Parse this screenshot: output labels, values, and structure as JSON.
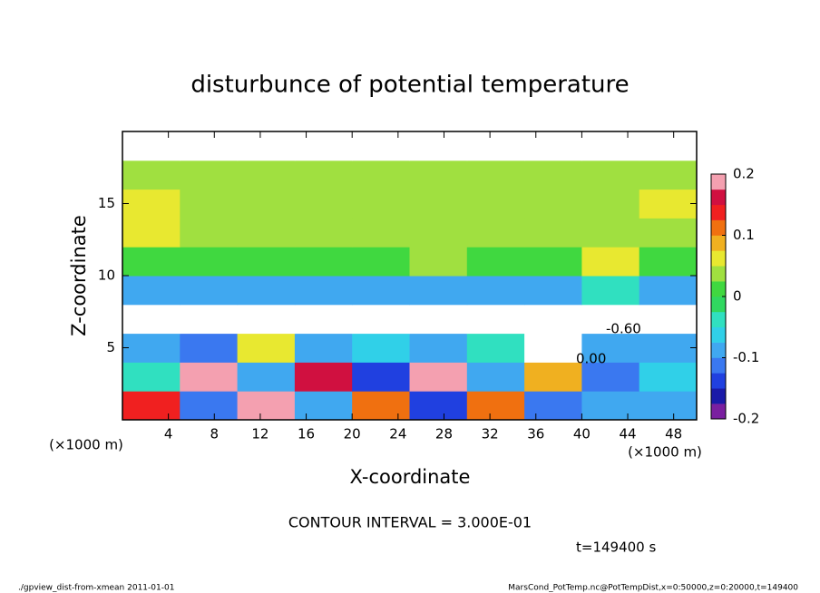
{
  "chart_data": {
    "type": "heatmap",
    "title": "disturbunce of potential temperature",
    "xlabel": "X-coordinate",
    "ylabel": "Z-coordinate",
    "xunit": "(×1000 m)",
    "yunit": "(×1000 m)",
    "xlim": [
      0,
      50
    ],
    "ylim": [
      0,
      20
    ],
    "xticks": [
      4,
      8,
      12,
      16,
      20,
      24,
      28,
      32,
      36,
      40,
      44,
      48
    ],
    "yticks": [
      5,
      10,
      15
    ],
    "x": [
      2.5,
      7.5,
      12.5,
      17.5,
      22.5,
      27.5,
      32.5,
      37.5,
      42.5,
      47.5
    ],
    "z": [
      1,
      3,
      5,
      7,
      9,
      11,
      13,
      15,
      17,
      19
    ],
    "values": [
      [
        0.15,
        -0.12,
        0.18,
        -0.1,
        0.12,
        -0.15,
        0.1,
        -0.12,
        -0.08,
        -0.1
      ],
      [
        -0.05,
        0.2,
        -0.1,
        0.16,
        -0.14,
        0.18,
        -0.1,
        0.08,
        -0.12,
        -0.06
      ],
      [
        -0.08,
        -0.12,
        0.05,
        -0.1,
        -0.06,
        -0.1,
        -0.05,
        -0.25,
        -0.08,
        -0.1
      ],
      [
        -0.25,
        -0.25,
        -0.25,
        -0.25,
        -0.25,
        -0.25,
        -0.25,
        -0.25,
        -0.25,
        -0.25
      ],
      [
        -0.09,
        -0.1,
        -0.09,
        -0.1,
        -0.09,
        -0.08,
        -0.09,
        -0.1,
        -0.03,
        -0.09
      ],
      [
        0.02,
        0.02,
        0.02,
        0.02,
        0.02,
        0.03,
        0.02,
        0.02,
        0.05,
        0.02
      ],
      [
        0.05,
        0.03,
        0.03,
        0.03,
        0.03,
        0.03,
        0.03,
        0.03,
        0.04,
        0.03
      ],
      [
        0.05,
        0.03,
        0.03,
        0.03,
        0.03,
        0.03,
        0.03,
        0.03,
        0.03,
        0.05
      ],
      [
        0.03,
        0.03,
        0.03,
        0.03,
        0.03,
        0.03,
        0.03,
        0.03,
        0.03,
        0.03
      ],
      [
        0.25,
        0.25,
        0.25,
        0.25,
        0.25,
        0.25,
        0.25,
        0.25,
        0.25,
        0.25
      ]
    ],
    "colorbar_lim": [
      -0.2,
      0.2
    ],
    "colorbar_ticks": [
      -0.2,
      -0.1,
      0,
      0.1,
      0.2
    ],
    "colors": [
      "#7a1fa0",
      "#1a1aa8",
      "#2040e0",
      "#3a78f0",
      "#40a8f0",
      "#30d0e8",
      "#30e0c0",
      "#30d860",
      "#40d840",
      "#a0e040",
      "#e8e830",
      "#f0b020",
      "#f07010",
      "#f02020",
      "#d01040",
      "#f4a0b0"
    ],
    "out_of_range_color": "#ffffff",
    "contour_labels": [
      "-0.60",
      "0.00"
    ],
    "contour_interval": "CONTOUR INTERVAL = 3.000E-01",
    "time": "t=149400 s",
    "footer_left": "./gpview_dist-from-xmean  2011-01-01",
    "footer_right": "MarsCond_PotTemp.nc@PotTempDist,x=0:50000,z=0:20000,t=149400"
  }
}
